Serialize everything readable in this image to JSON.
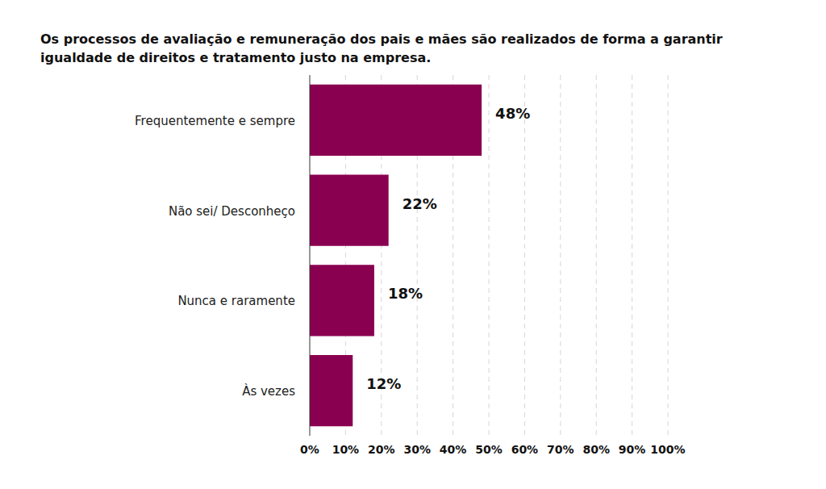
{
  "chart_data": {
    "type": "bar",
    "orientation": "horizontal",
    "title": "Os processos de avaliação e remuneração dos pais e mães são realizados de forma a garantir igualdade de direitos e tratamento justo na empresa.",
    "categories": [
      "Frequentemente e sempre",
      "Não sei/ Desconheço",
      "Nunca e raramente",
      "Às vezes"
    ],
    "values": [
      48,
      22,
      18,
      12
    ],
    "value_labels": [
      "48%",
      "22%",
      "18%",
      "12%"
    ],
    "color": "#8a0050",
    "xlim": [
      0,
      100
    ],
    "xticks": [
      {
        "value": 0,
        "label": "0%"
      },
      {
        "value": 10,
        "label": "10%"
      },
      {
        "value": 20,
        "label": "20%"
      },
      {
        "value": 30,
        "label": "30%"
      },
      {
        "value": 40,
        "label": "40%"
      },
      {
        "value": 50,
        "label": "50%"
      },
      {
        "value": 60,
        "label": "60%"
      },
      {
        "value": 70,
        "label": "70%"
      },
      {
        "value": 80,
        "label": "80%"
      },
      {
        "value": 90,
        "label": "90%"
      },
      {
        "value": 100,
        "label": "100%"
      }
    ],
    "grid": true,
    "data_labels": true
  }
}
